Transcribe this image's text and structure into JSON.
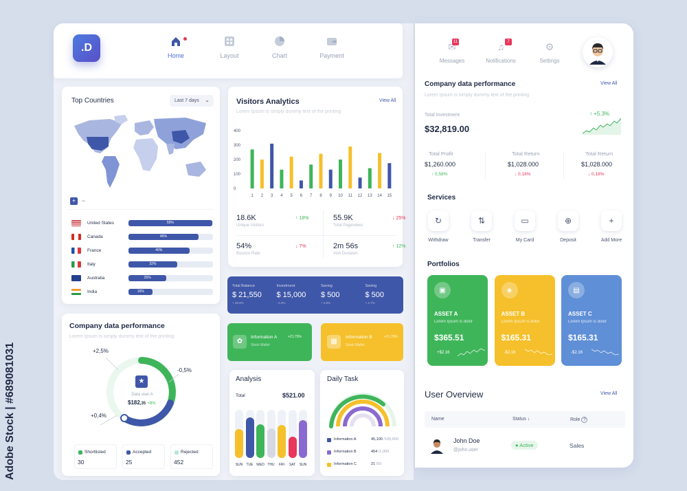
{
  "watermark": {
    "vertical_text": "Adobe Stock | #689081031"
  },
  "brand": {
    "logo_text": ".D"
  },
  "nav": [
    {
      "label": "Home",
      "icon": "home-icon",
      "active": true
    },
    {
      "label": "Layout",
      "icon": "layout-icon",
      "active": false
    },
    {
      "label": "Chart",
      "icon": "pie-chart-icon",
      "active": false
    },
    {
      "label": "Payment",
      "icon": "wallet-icon",
      "active": false
    }
  ],
  "topbar_right": [
    {
      "label": "Messages",
      "badge": "11",
      "icon": "mail-icon"
    },
    {
      "label": "Notifications",
      "badge": "7",
      "icon": "bell-icon"
    },
    {
      "label": "Settings",
      "badge": "",
      "icon": "gear-icon"
    }
  ],
  "top_countries": {
    "title": "Top Countries",
    "range_select": "Last 7 days",
    "zoom_in": "+",
    "zoom_out": "−",
    "countries": [
      {
        "name": "United States",
        "pct": "55%",
        "value": 0.55,
        "flag": "us"
      },
      {
        "name": "Canada",
        "pct": "46%",
        "value": 0.46,
        "flag": "ca"
      },
      {
        "name": "France",
        "pct": "40%",
        "value": 0.4,
        "flag": "fr"
      },
      {
        "name": "Italy",
        "pct": "32%",
        "value": 0.32,
        "flag": "it"
      },
      {
        "name": "Australia",
        "pct": "25%",
        "value": 0.25,
        "flag": "au"
      },
      {
        "name": "India",
        "pct": "16%",
        "value": 0.16,
        "flag": "in"
      }
    ]
  },
  "visitors": {
    "title": "Visitors Analytics",
    "subtitle": "Lorem Ipsum is simply dummy text of the printing",
    "view_all": "View All",
    "stats": [
      {
        "value": "18.6K",
        "label": "Unique Visitors",
        "change": "18%",
        "dir": "up"
      },
      {
        "value": "55.9K",
        "label": "Total Pageviews",
        "change": "25%",
        "dir": "down"
      },
      {
        "value": "54%",
        "label": "Bounce Rate",
        "change": "7%",
        "dir": "down"
      },
      {
        "value": "2m 56s",
        "label": "Visit Duration",
        "change": "12%",
        "dir": "up"
      }
    ]
  },
  "chart_data": {
    "type": "bar",
    "categories": [
      "1",
      "2",
      "3",
      "4",
      "5",
      "6",
      "7",
      "8",
      "9",
      "10",
      "11",
      "12",
      "13",
      "14",
      "15"
    ],
    "values": [
      270,
      200,
      310,
      130,
      220,
      55,
      165,
      240,
      130,
      200,
      290,
      75,
      140,
      245,
      175
    ],
    "colors": [
      "#3fb55a",
      "#f5c02b",
      "#3f57a8",
      "#3fb55a",
      "#f5c02b",
      "#3f57a8",
      "#3fb55a",
      "#f5c02b",
      "#3f57a8",
      "#3fb55a",
      "#f5c02b",
      "#3f57a8",
      "#3fb55a",
      "#f5c02b",
      "#3f57a8"
    ],
    "yticks": [
      "0",
      "100",
      "200",
      "300",
      "400"
    ],
    "ylim": [
      0,
      400
    ],
    "grid": false
  },
  "balance_bar": [
    {
      "label": "Total Balance",
      "value": "$ 21,550",
      "change": "+ 39.9%"
    },
    {
      "label": "Investment",
      "value": "$ 15,000",
      "change": "- 6.3%"
    },
    {
      "label": "Saving",
      "value": "$ 500",
      "change": "+ 3.8%"
    },
    {
      "label": "Saving",
      "value": "$ 500",
      "change": "+ 2.7%"
    }
  ],
  "info_cards": [
    {
      "title": "Information A",
      "sub": "Stock Wallet",
      "change": "+21.75%"
    },
    {
      "title": "Information B",
      "sub": "Stock Wallet",
      "change": "+21.75%"
    }
  ],
  "company_left": {
    "title": "Company data performance",
    "subtitle": "Lorem Ipsum is simply dummy text of the printing",
    "donut_labels": [
      "+2,5%",
      "-0,5%",
      "+0,4%"
    ],
    "center_label": "Data user A",
    "center_value": "$182",
    "center_cents": ",35",
    "center_change": "+8%",
    "legend": [
      {
        "label": "Shortlisted",
        "value": "30",
        "color": "#3fb55a"
      },
      {
        "label": "Accepted",
        "value": "25",
        "color": "#3f57a8"
      },
      {
        "label": "Rejected",
        "value": "452",
        "color": "#b8e6d6"
      }
    ]
  },
  "analysis": {
    "title": "Analysis",
    "total_label": "Total",
    "total_value": "$521.00",
    "days": [
      "SUN",
      "TUE",
      "WED",
      "THU",
      "FRI",
      "SAT",
      "SUN"
    ]
  },
  "daily_task": {
    "title": "Daily Task",
    "items": [
      {
        "label": "Information A",
        "value": "45,100",
        "total": "/100,000",
        "color": "#3f57a8"
      },
      {
        "label": "Information B",
        "value": "454",
        "total": "/1,000",
        "color": "#8a6ad0"
      },
      {
        "label": "Information C",
        "value": "21",
        "total": "/50",
        "color": "#f5c02b"
      }
    ]
  },
  "company_right": {
    "title": "Company data performance",
    "subtitle": "Lorem Ipsum is simply dummy text of the printing",
    "view_all": "View All",
    "investment_label": "Total Investment",
    "investment_value": "$32,819.00",
    "investment_change": "+5.3%",
    "metrics": [
      {
        "label": "Total Profit",
        "value": "$1,260.000",
        "change": "0,58%",
        "dir": "up"
      },
      {
        "label": "Total Return",
        "value": "$1,028.000",
        "change": "0,18%",
        "dir": "down"
      },
      {
        "label": "Total Return",
        "value": "$1,028.000",
        "change": "0,18%",
        "dir": "down"
      }
    ]
  },
  "services": {
    "title": "Services",
    "items": [
      {
        "label": "Withdraw",
        "glyph": "↻"
      },
      {
        "label": "Transfer",
        "glyph": "⇅"
      },
      {
        "label": "My Card",
        "glyph": "▭"
      },
      {
        "label": "Deposit",
        "glyph": "⊕"
      },
      {
        "label": "Add More",
        "glyph": "+"
      }
    ]
  },
  "portfolios": {
    "title": "Portfolios",
    "assets": [
      {
        "name": "ASSET A",
        "desc": "Lorem Ipsum is dolor",
        "value": "$365.51",
        "change": "+$2.16",
        "color": "#3fb55a"
      },
      {
        "name": "ASSET B",
        "desc": "Lorem Ipsum is dolor",
        "value": "$165.31",
        "change": "-$2.16",
        "color": "#f5c02b"
      },
      {
        "name": "ASSET C",
        "desc": "Lorem Ipsum is dolor",
        "value": "$165.31",
        "change": "-$2.16",
        "color": "#5f8fd6"
      }
    ]
  },
  "user_overview": {
    "title": "User Overview",
    "view_all": "View All",
    "columns": [
      "Name",
      "Status",
      "Role"
    ],
    "rows": [
      {
        "name": "John Doe",
        "handle": "@john.user",
        "status": "Active",
        "role": "Sales"
      }
    ]
  }
}
